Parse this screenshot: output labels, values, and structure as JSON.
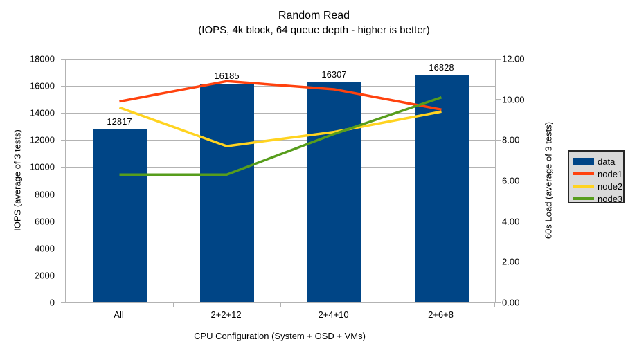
{
  "title": "Random Read",
  "subtitle": "(IOPS, 4k block, 64 queue depth - higher is better)",
  "chart_data": {
    "type": "bar",
    "subtype": "bar-line-combo-dual-axis",
    "categories": [
      "All",
      "2+2+12",
      "2+4+10",
      "2+6+8"
    ],
    "bar_series": {
      "name": "data",
      "color": "#004586",
      "axis": "left",
      "values": [
        12817,
        16185,
        16307,
        16828
      ],
      "data_labels": [
        "12817",
        "16185",
        "16307",
        "16828"
      ]
    },
    "line_series": [
      {
        "name": "node1",
        "color": "#ff420e",
        "axis": "right",
        "values": [
          9.9,
          10.9,
          10.5,
          9.5
        ]
      },
      {
        "name": "node2",
        "color": "#ffd320",
        "axis": "right",
        "values": [
          9.6,
          7.7,
          8.4,
          9.4
        ]
      },
      {
        "name": "node3",
        "color": "#579d1c",
        "axis": "right",
        "values": [
          6.3,
          6.3,
          8.3,
          10.1
        ]
      }
    ],
    "x_axis": {
      "title": "CPU Configuration (System + OSD + VMs)"
    },
    "y_left": {
      "title": "IOPS (average of 3 tests)",
      "min": 0,
      "max": 18000,
      "step": 2000
    },
    "y_right": {
      "title": "60s Load (average of 3 tests)",
      "min": 0,
      "max": 12,
      "step": 2,
      "decimals": 2
    },
    "legend": {
      "position": "right",
      "entries": [
        "data",
        "node1",
        "node2",
        "node3"
      ]
    },
    "grid": "horizontal-only",
    "colors": {
      "background": "#ffffff",
      "grid": "#b3b3b3",
      "axis": "#b3b3b3",
      "text": "#000000",
      "legend_bg": "#d9d9d9",
      "legend_border": "#262626"
    }
  }
}
